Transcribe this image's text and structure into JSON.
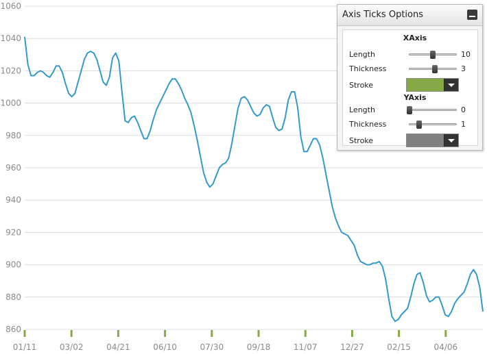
{
  "chart_data": {
    "type": "line",
    "ylim": [
      860,
      1060
    ],
    "yticks": [
      "860",
      "880",
      "900",
      "920",
      "940",
      "960",
      "980",
      "1000",
      "1020",
      "1040",
      "1060"
    ],
    "xtick_labels": [
      "01/11",
      "03/02",
      "04/21",
      "06/10",
      "07/30",
      "09/18",
      "11/07",
      "12/27",
      "02/15",
      "04/06"
    ],
    "values": [
      1041,
      1024,
      1017,
      1017,
      1019,
      1020,
      1019,
      1017,
      1016,
      1019,
      1023,
      1023,
      1019,
      1012,
      1006,
      1004,
      1006,
      1013,
      1020,
      1027,
      1031,
      1032,
      1031,
      1027,
      1020,
      1013,
      1011,
      1016,
      1028,
      1031,
      1026,
      1007,
      989,
      988,
      991,
      992,
      988,
      983,
      978,
      978,
      983,
      990,
      996,
      1000,
      1004,
      1008,
      1012,
      1015,
      1015,
      1012,
      1008,
      1003,
      999,
      994,
      986,
      977,
      967,
      957,
      951,
      948,
      950,
      955,
      960,
      962,
      963,
      966,
      975,
      986,
      997,
      1003,
      1004,
      1002,
      998,
      994,
      992,
      993,
      997,
      999,
      998,
      991,
      985,
      983,
      984,
      991,
      1002,
      1007,
      1007,
      997,
      979,
      970,
      970,
      974,
      978,
      978,
      974,
      966,
      956,
      946,
      936,
      929,
      924,
      920,
      919,
      918,
      915,
      912,
      906,
      902,
      901,
      900,
      900,
      901,
      901,
      902,
      899,
      891,
      879,
      868,
      865,
      866,
      869,
      871,
      873,
      880,
      888,
      894,
      895,
      889,
      881,
      877,
      878,
      880,
      880,
      875,
      869,
      868,
      871,
      876,
      879,
      881,
      883,
      888,
      894,
      897,
      894,
      886,
      871
    ],
    "stroke": "#3399cc",
    "grid": true
  },
  "panel": {
    "title": "Axis Ticks Options",
    "xaxis": {
      "title": "XAxis",
      "length_label": "Length",
      "length_value": "10",
      "length_fraction": 0.5,
      "thickness_label": "Thickness",
      "thickness_value": "3",
      "thickness_fraction": 0.55,
      "stroke_label": "Stroke",
      "stroke_color": "#86a946"
    },
    "yaxis": {
      "title": "YAxis",
      "length_label": "Length",
      "length_value": "0",
      "length_fraction": 0.0,
      "thickness_label": "Thickness",
      "thickness_value": "1",
      "thickness_fraction": 0.2,
      "stroke_label": "Stroke",
      "stroke_color": "#808080"
    }
  },
  "colors": {
    "x_tick_marks": "#86a946",
    "gridline": "#dcdcdc",
    "axis_label": "#8a8a8a"
  }
}
